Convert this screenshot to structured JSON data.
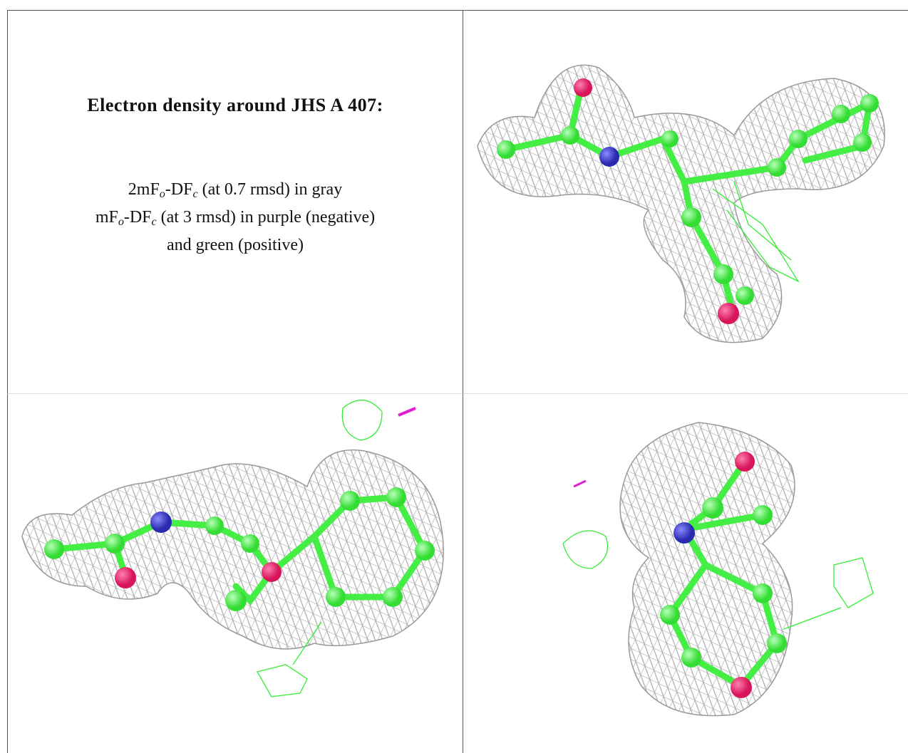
{
  "caption": {
    "title": "Electron density around JHS A 407:",
    "lines": [
      [
        "2mF",
        "o",
        "-DF",
        "c",
        " (at 0.7 rmsd) in gray"
      ],
      [
        "mF",
        "o",
        "-DF",
        "c",
        " (at 3 rmsd) in purple (negative)"
      ],
      [
        "and green (positive)"
      ]
    ]
  }
}
